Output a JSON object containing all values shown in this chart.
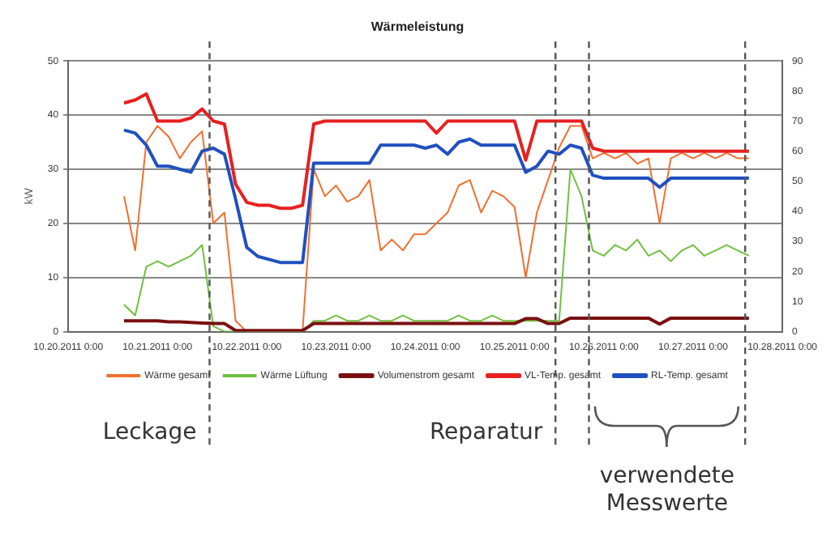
{
  "chart_data": {
    "type": "line",
    "title": "Wärmeleistung",
    "ylabel": "kW",
    "x": [
      "2011-10-20T15:00",
      "2011-10-20T18:00",
      "2011-10-20T21:00",
      "2011-10-21T00:00",
      "2011-10-21T03:00",
      "2011-10-21T06:00",
      "2011-10-21T09:00",
      "2011-10-21T12:00",
      "2011-10-21T15:00",
      "2011-10-21T18:00",
      "2011-10-21T21:00",
      "2011-10-22T00:00",
      "2011-10-22T03:00",
      "2011-10-22T06:00",
      "2011-10-22T09:00",
      "2011-10-22T12:00",
      "2011-10-22T15:00",
      "2011-10-22T18:00",
      "2011-10-22T21:00",
      "2011-10-23T00:00",
      "2011-10-23T03:00",
      "2011-10-23T06:00",
      "2011-10-23T09:00",
      "2011-10-23T12:00",
      "2011-10-23T15:00",
      "2011-10-23T18:00",
      "2011-10-23T21:00",
      "2011-10-24T00:00",
      "2011-10-24T03:00",
      "2011-10-24T06:00",
      "2011-10-24T09:00",
      "2011-10-24T12:00",
      "2011-10-24T15:00",
      "2011-10-24T18:00",
      "2011-10-24T21:00",
      "2011-10-25T00:00",
      "2011-10-25T03:00",
      "2011-10-25T06:00",
      "2011-10-25T09:00",
      "2011-10-25T12:00",
      "2011-10-25T15:00",
      "2011-10-25T18:00",
      "2011-10-25T21:00",
      "2011-10-26T00:00",
      "2011-10-26T03:00",
      "2011-10-26T06:00",
      "2011-10-26T09:00",
      "2011-10-26T12:00",
      "2011-10-26T15:00",
      "2011-10-26T18:00",
      "2011-10-26T21:00",
      "2011-10-27T00:00",
      "2011-10-27T03:00",
      "2011-10-27T06:00",
      "2011-10-27T09:00",
      "2011-10-27T12:00",
      "2011-10-27T15:00"
    ],
    "series": [
      {
        "name": "Wärme gesamt",
        "color": "#f07030",
        "values": [
          25,
          15,
          35,
          38,
          36,
          32,
          35,
          37,
          20,
          22,
          2,
          0,
          0,
          0,
          0,
          0,
          0,
          30,
          25,
          27,
          24,
          25,
          28,
          15,
          17,
          15,
          18,
          18,
          20,
          22,
          27,
          28,
          22,
          26,
          25,
          23,
          10,
          22,
          28,
          34,
          38,
          38,
          32,
          33,
          32,
          33,
          31,
          32,
          20,
          32,
          33,
          32,
          33,
          32,
          33,
          32,
          32
        ]
      },
      {
        "name": "Wärme Lüftung",
        "color": "#70c040",
        "values": [
          5,
          3,
          12,
          13,
          12,
          13,
          14,
          16,
          1,
          0,
          0,
          0,
          0,
          0,
          0,
          0,
          0,
          2,
          2,
          3,
          2,
          2,
          3,
          2,
          2,
          3,
          2,
          2,
          2,
          2,
          3,
          2,
          2,
          3,
          2,
          2,
          2,
          2,
          2,
          2,
          30,
          25,
          15,
          14,
          16,
          15,
          17,
          14,
          15,
          13,
          15,
          16,
          14,
          15,
          16,
          15,
          14
        ]
      },
      {
        "name": "Volumenstrom gesamt",
        "color": "#7a1010",
        "values": [
          2,
          2,
          2,
          2,
          1.8,
          1.8,
          1.7,
          1.6,
          1.5,
          1.5,
          0.2,
          0.2,
          0.2,
          0.2,
          0.2,
          0.2,
          0.2,
          1.5,
          1.5,
          1.5,
          1.5,
          1.5,
          1.5,
          1.5,
          1.5,
          1.5,
          1.5,
          1.5,
          1.5,
          1.5,
          1.5,
          1.5,
          1.5,
          1.5,
          1.5,
          1.5,
          2.4,
          2.4,
          1.5,
          1.5,
          2.5,
          2.5,
          2.5,
          2.5,
          2.5,
          2.5,
          2.5,
          2.5,
          1.4,
          2.5,
          2.5,
          2.5,
          2.5,
          2.5,
          2.5,
          2.5,
          2.5
        ]
      },
      {
        "name": "VL-Temp. gesamt",
        "color": "#e82020",
        "axis": "y2",
        "values": [
          76,
          77,
          79,
          70,
          70,
          70,
          71,
          74,
          70,
          69,
          49,
          43,
          42,
          42,
          41,
          41,
          42,
          69,
          70,
          70,
          70,
          70,
          70,
          70,
          70,
          70,
          70,
          70,
          66,
          70,
          70,
          70,
          70,
          70,
          70,
          70,
          57,
          70,
          70,
          70,
          70,
          70,
          61,
          60,
          60,
          60,
          60,
          60,
          60,
          60,
          60,
          60,
          60,
          60,
          60,
          60,
          60
        ]
      },
      {
        "name": "RL-Temp. gesamt",
        "color": "#2050c0",
        "axis": "y2",
        "values": [
          67,
          66,
          62,
          55,
          55,
          54,
          53,
          60,
          61,
          59,
          44,
          28,
          25,
          24,
          23,
          23,
          23,
          56,
          56,
          56,
          56,
          56,
          56,
          62,
          62,
          62,
          62,
          61,
          62,
          59,
          63,
          64,
          62,
          62,
          62,
          62,
          53,
          55,
          60,
          59,
          62,
          61,
          52,
          51,
          51,
          51,
          51,
          51,
          48,
          51,
          51,
          51,
          51,
          51,
          51,
          51,
          51
        ]
      }
    ],
    "xlim": [
      "2011-10-20T00:00",
      "2011-10-28T00:00"
    ],
    "xticks": [
      {
        "value": "2011-10-20T00:00",
        "label": "10.20.2011 0:00"
      },
      {
        "value": "2011-10-21T00:00",
        "label": "10.21.2011 0:00"
      },
      {
        "value": "2011-10-22T00:00",
        "label": "10.22.2011 0:00"
      },
      {
        "value": "2011-10-23T00:00",
        "label": "10.23.2011 0:00"
      },
      {
        "value": "2011-10-24T00:00",
        "label": "10.24.2011 0:00"
      },
      {
        "value": "2011-10-25T00:00",
        "label": "10.25.2011 0:00"
      },
      {
        "value": "2011-10-26T00:00",
        "label": "10.26.2011 0:00"
      },
      {
        "value": "2011-10-27T00:00",
        "label": "10.27.2011 0:00"
      },
      {
        "value": "2011-10-28T00:00",
        "label": "10.28.2011 0:00"
      }
    ],
    "ylim": [
      0,
      50
    ],
    "yticks": [
      0,
      10,
      20,
      30,
      40,
      50
    ],
    "y2lim": [
      0,
      90
    ],
    "y2ticks": [
      0,
      10,
      20,
      30,
      40,
      50,
      60,
      70,
      80,
      90
    ],
    "ref_lines": [
      {
        "axis": "x",
        "value": "2011-10-21T14:00",
        "label": "Leckage",
        "line_style": "dashed"
      },
      {
        "axis": "x",
        "value": "2011-10-25T11:00",
        "label": "Reparatur",
        "line_style": "dashed"
      },
      {
        "axis": "x",
        "value": "2011-10-25T20:00",
        "line_style": "dashed"
      },
      {
        "axis": "x",
        "value": "2011-10-27T14:00",
        "line_style": "dashed"
      }
    ],
    "annotations": [
      "verwendete Messwerte"
    ],
    "grid": "y",
    "legend": "bottom",
    "marker": "none",
    "line_style": "solid"
  }
}
